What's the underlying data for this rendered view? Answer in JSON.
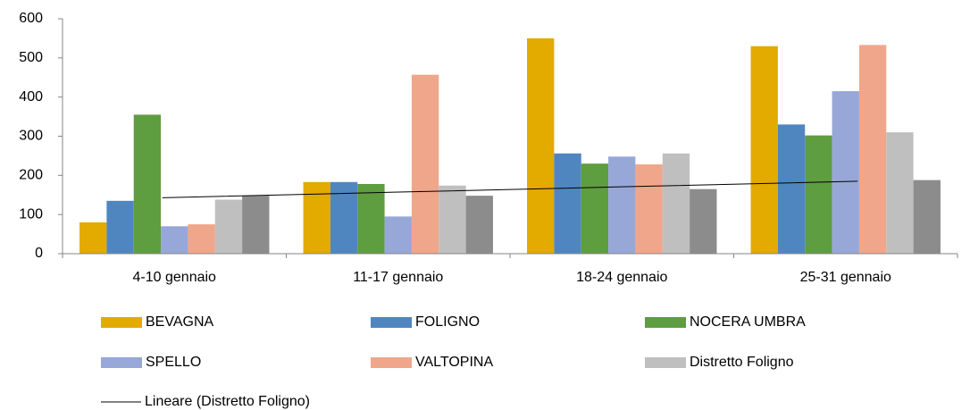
{
  "chart_data": {
    "type": "bar",
    "categories": [
      "4-10 gennaio",
      "11-17 gennaio",
      "18-24 gennaio",
      "25-31 gennaio"
    ],
    "series": [
      {
        "name": "BEVAGNA",
        "color": "#e3aa00",
        "values": [
          80,
          183,
          550,
          530
        ]
      },
      {
        "name": "FOLIGNO",
        "color": "#4f86c0",
        "values": [
          135,
          183,
          256,
          330
        ]
      },
      {
        "name": "NOCERA UMBRA",
        "color": "#5e9d40",
        "values": [
          355,
          178,
          230,
          302
        ]
      },
      {
        "name": "SPELLO",
        "color": "#97a7d8",
        "values": [
          70,
          95,
          248,
          415
        ]
      },
      {
        "name": "VALTOPINA",
        "color": "#f0a68a",
        "values": [
          75,
          457,
          228,
          533
        ]
      },
      {
        "name": "Distretto Foligno",
        "color": "#bfbfbf",
        "values": [
          138,
          174,
          256,
          310
        ]
      },
      {
        "color": "#8c8c8c",
        "values": [
          148,
          148,
          165,
          188
        ]
      }
    ],
    "trendline": {
      "name": "Lineare (Distretto Foligno)",
      "color": "#000000",
      "values": [
        143,
        157,
        171,
        185
      ]
    },
    "ylim": [
      0,
      600
    ],
    "yticks": [
      0,
      100,
      200,
      300,
      400,
      500,
      600
    ],
    "grid": false
  }
}
